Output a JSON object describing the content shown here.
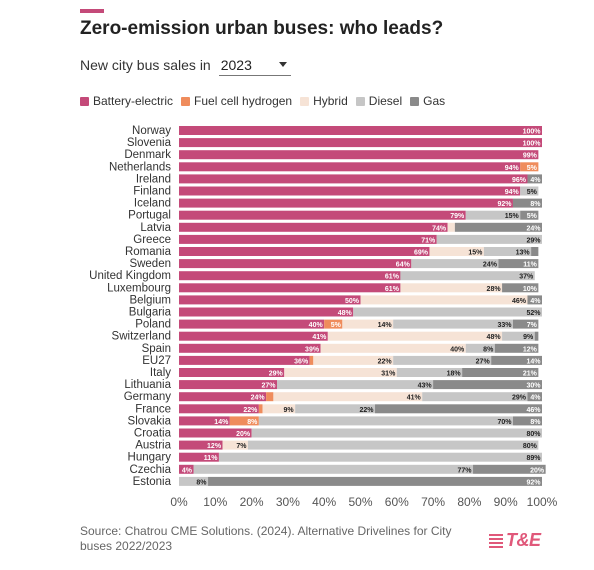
{
  "header": {
    "title": "Zero-emission urban buses: who leads?",
    "subtitle": "New city bus sales in",
    "year_selected": "2023"
  },
  "legend": [
    {
      "name": "Battery-electric",
      "color": "#c44a79"
    },
    {
      "name": "Fuel cell hydrogen",
      "color": "#ef8c5c"
    },
    {
      "name": "Hybrid",
      "color": "#f6e3d6"
    },
    {
      "name": "Diesel",
      "color": "#c6c6c6"
    },
    {
      "name": "Gas",
      "color": "#8a8a8a"
    }
  ],
  "chart_data": {
    "type": "bar",
    "orientation": "horizontal",
    "stacked": true,
    "percent": true,
    "xlim": [
      0,
      100
    ],
    "x_ticks": [
      "0%",
      "10%",
      "20%",
      "30%",
      "40%",
      "50%",
      "60%",
      "70%",
      "80%",
      "90%",
      "100%"
    ],
    "categories": [
      "Norway",
      "Slovenia",
      "Denmark",
      "Netherlands",
      "Ireland",
      "Finland",
      "Iceland",
      "Portugal",
      "Latvia",
      "Greece",
      "Romania",
      "Sweden",
      "United Kingdom",
      "Luxembourg",
      "Belgium",
      "Bulgaria",
      "Poland",
      "Switzerland",
      "Spain",
      "EU27",
      "Italy",
      "Lithuania",
      "Germany",
      "France",
      "Slovakia",
      "Croatia",
      "Austria",
      "Hungary",
      "Czechia",
      "Estonia"
    ],
    "series": [
      {
        "name": "Battery-electric",
        "color": "#c44a79",
        "values": [
          100,
          100,
          99,
          94,
          96,
          94,
          92,
          79,
          74,
          71,
          69,
          64,
          61,
          61,
          50,
          48,
          40,
          41,
          39,
          36,
          29,
          27,
          24,
          22,
          14,
          20,
          12,
          11,
          4,
          0
        ]
      },
      {
        "name": "Fuel cell hydrogen",
        "color": "#ef8c5c",
        "values": [
          0,
          0,
          0,
          5,
          0,
          0,
          0,
          0,
          0,
          0,
          0,
          0,
          0,
          0,
          0,
          0,
          5,
          0,
          0,
          1,
          0,
          0,
          2,
          1,
          8,
          0,
          0,
          0,
          0,
          0
        ]
      },
      {
        "name": "Hybrid",
        "color": "#f6e3d6",
        "values": [
          0,
          0,
          0,
          0,
          0,
          0,
          0,
          0,
          2,
          0,
          15,
          0,
          0,
          28,
          46,
          0,
          14,
          48,
          40,
          22,
          31,
          0,
          41,
          9,
          0,
          0,
          7,
          0,
          0,
          0
        ]
      },
      {
        "name": "Diesel",
        "color": "#c6c6c6",
        "values": [
          0,
          0,
          0,
          0,
          0,
          5,
          0,
          15,
          0,
          29,
          13,
          24,
          37,
          0,
          0,
          52,
          33,
          9,
          8,
          27,
          18,
          43,
          29,
          22,
          70,
          80,
          80,
          89,
          77,
          8
        ]
      },
      {
        "name": "Gas",
        "color": "#8a8a8a",
        "values": [
          0,
          0,
          0,
          0,
          4,
          0,
          8,
          5,
          24,
          0,
          2,
          11,
          0,
          10,
          4,
          0,
          7,
          1,
          12,
          14,
          21,
          30,
          4,
          46,
          8,
          0,
          0,
          0,
          20,
          92
        ]
      }
    ],
    "data_labels": [
      [
        [
          "100%",
          0
        ]
      ],
      [
        [
          "100%",
          0
        ]
      ],
      [
        [
          "99%",
          0
        ]
      ],
      [
        [
          "94%",
          0
        ],
        [
          "5%",
          1
        ]
      ],
      [
        [
          "96%",
          0
        ],
        [
          "4%",
          4
        ]
      ],
      [
        [
          "94%",
          0
        ],
        [
          "5%",
          3
        ]
      ],
      [
        [
          "92%",
          0
        ],
        [
          "8%",
          4
        ]
      ],
      [
        [
          "79%",
          0
        ],
        [
          "15%",
          3
        ],
        [
          "5%",
          4
        ]
      ],
      [
        [
          "74%",
          0
        ],
        [
          "24%",
          4
        ]
      ],
      [
        [
          "71%",
          0
        ],
        [
          "29%",
          3
        ]
      ],
      [
        [
          "69%",
          0
        ],
        [
          "15%",
          2
        ],
        [
          "13%",
          3
        ]
      ],
      [
        [
          "64%",
          0
        ],
        [
          "24%",
          3
        ],
        [
          "11%",
          4
        ]
      ],
      [
        [
          "61%",
          0
        ],
        [
          "37%",
          3
        ]
      ],
      [
        [
          "61%",
          0
        ],
        [
          "28%",
          2
        ],
        [
          "10%",
          4
        ]
      ],
      [
        [
          "50%",
          0
        ],
        [
          "46%",
          2
        ],
        [
          "4%",
          4
        ]
      ],
      [
        [
          "48%",
          0
        ],
        [
          "52%",
          3
        ]
      ],
      [
        [
          "40%",
          0
        ],
        [
          "5%",
          1
        ],
        [
          "14%",
          2
        ],
        [
          "33%",
          3
        ],
        [
          "7%",
          4
        ]
      ],
      [
        [
          "41%",
          0
        ],
        [
          "48%",
          2
        ],
        [
          "9%",
          3
        ]
      ],
      [
        [
          "39%",
          0
        ],
        [
          "40%",
          2
        ],
        [
          "8%",
          3
        ],
        [
          "12%",
          4
        ]
      ],
      [
        [
          "36%",
          0
        ],
        [
          "22%",
          2
        ],
        [
          "27%",
          3
        ],
        [
          "14%",
          4
        ]
      ],
      [
        [
          "29%",
          0
        ],
        [
          "31%",
          2
        ],
        [
          "18%",
          3
        ],
        [
          "21%",
          4
        ]
      ],
      [
        [
          "27%",
          0
        ],
        [
          "43%",
          3
        ],
        [
          "30%",
          4
        ]
      ],
      [
        [
          "24%",
          0
        ],
        [
          "41%",
          2
        ],
        [
          "29%",
          3
        ],
        [
          "4%",
          4
        ]
      ],
      [
        [
          "22%",
          0
        ],
        [
          "9%",
          2
        ],
        [
          "22%",
          3
        ],
        [
          "46%",
          4
        ]
      ],
      [
        [
          "14%",
          0
        ],
        [
          "8%",
          1
        ],
        [
          "70%",
          3
        ],
        [
          "8%",
          4
        ]
      ],
      [
        [
          "20%",
          0
        ],
        [
          "80%",
          3
        ]
      ],
      [
        [
          "12%",
          0
        ],
        [
          "7%",
          2
        ],
        [
          "80%",
          3
        ]
      ],
      [
        [
          "11%",
          0
        ],
        [
          "89%",
          3
        ]
      ],
      [
        [
          "4%",
          0
        ],
        [
          "77%",
          3
        ],
        [
          "20%",
          4
        ]
      ],
      [
        [
          "8%",
          3
        ],
        [
          "92%",
          4
        ]
      ]
    ]
  },
  "footer": {
    "source": "Source: Chatrou CME Solutions. (2024). Alternative Drivelines for City buses 2022/2023",
    "logo_text": "T&E"
  }
}
